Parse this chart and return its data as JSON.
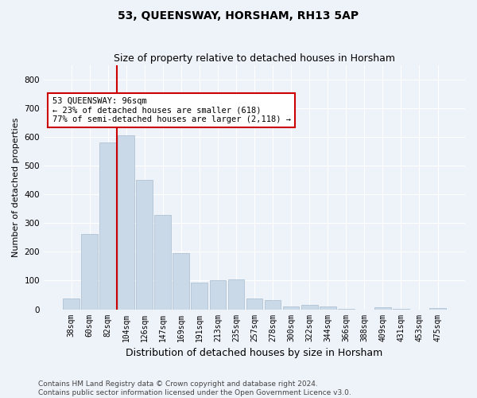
{
  "title": "53, QUEENSWAY, HORSHAM, RH13 5AP",
  "subtitle": "Size of property relative to detached houses in Horsham",
  "xlabel": "Distribution of detached houses by size in Horsham",
  "ylabel": "Number of detached properties",
  "categories": [
    "38sqm",
    "60sqm",
    "82sqm",
    "104sqm",
    "126sqm",
    "147sqm",
    "169sqm",
    "191sqm",
    "213sqm",
    "235sqm",
    "257sqm",
    "278sqm",
    "300sqm",
    "322sqm",
    "344sqm",
    "366sqm",
    "388sqm",
    "409sqm",
    "431sqm",
    "453sqm",
    "475sqm"
  ],
  "values": [
    37,
    262,
    580,
    605,
    452,
    328,
    197,
    92,
    100,
    105,
    38,
    32,
    11,
    16,
    10,
    1,
    0,
    8,
    1,
    0,
    5
  ],
  "bar_color": "#c9d9e8",
  "bar_edge_color": "#a8bece",
  "highlight_line_color": "#cc0000",
  "annotation_text": "53 QUEENSWAY: 96sqm\n← 23% of detached houses are smaller (618)\n77% of semi-detached houses are larger (2,118) →",
  "annotation_box_facecolor": "#ffffff",
  "annotation_box_edgecolor": "#cc0000",
  "ylim": [
    0,
    850
  ],
  "yticks": [
    0,
    100,
    200,
    300,
    400,
    500,
    600,
    700,
    800
  ],
  "background_color": "#eef2f9",
  "grid_color": "#ffffff",
  "footer_text": "Contains HM Land Registry data © Crown copyright and database right 2024.\nContains public sector information licensed under the Open Government Licence v3.0.",
  "title_fontsize": 10,
  "subtitle_fontsize": 9,
  "ylabel_fontsize": 8,
  "xlabel_fontsize": 9,
  "annotation_fontsize": 7.5,
  "footer_fontsize": 6.5,
  "tick_fontsize": 7,
  "ytick_fontsize": 7.5
}
